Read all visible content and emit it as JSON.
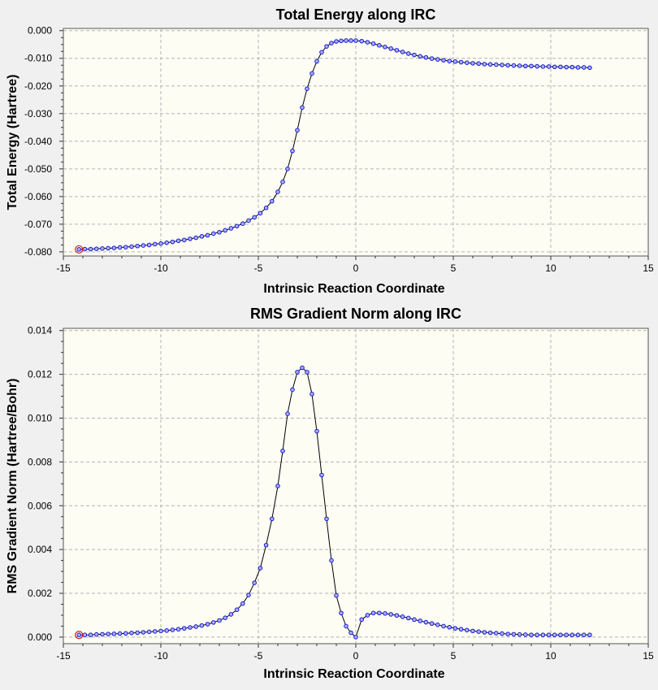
{
  "colors": {
    "window_bg": "#f0f0f0",
    "plot_bg": "#fdfdf4",
    "grid": "#b4b4b4",
    "curve": "#000000",
    "point_stroke": "#1a1acc",
    "point_fill": "#aab0ff",
    "highlight_marker": "#cc2020"
  },
  "chart_data": [
    {
      "type": "line",
      "title": "Total Energy along IRC",
      "xlabel": "Intrinsic Reaction Coordinate",
      "ylabel": "Total Energy (Hartree)",
      "xlim": [
        -15,
        15
      ],
      "ylim": [
        -0.0815,
        0.0008
      ],
      "xticks": [
        -15,
        -10,
        -5,
        0,
        5,
        10,
        15
      ],
      "xtick_labels": [
        "-15",
        "-10",
        "-5",
        "0",
        "5",
        "10",
        "15"
      ],
      "yticks": [
        0,
        -0.01,
        -0.02,
        -0.03,
        -0.04,
        -0.05,
        -0.06,
        -0.07,
        -0.08
      ],
      "ytick_labels": [
        "0.000",
        "-0.010",
        "-0.020",
        "-0.030",
        "-0.040",
        "-0.050",
        "-0.060",
        "-0.070",
        "-0.080"
      ],
      "grid": true,
      "highlighted_point": {
        "x": -14.2,
        "y": -0.0791
      },
      "series": [
        {
          "x": [
            -14.2,
            -13.9,
            -13.6,
            -13.3,
            -13.0,
            -12.7,
            -12.4,
            -12.1,
            -11.8,
            -11.5,
            -11.2,
            -10.9,
            -10.6,
            -10.3,
            -10.0,
            -9.7,
            -9.4,
            -9.1,
            -8.8,
            -8.5,
            -8.2,
            -7.9,
            -7.6,
            -7.3,
            -7.0,
            -6.7,
            -6.4,
            -6.1,
            -5.8,
            -5.5,
            -5.2,
            -4.9,
            -4.6,
            -4.3,
            -4.0,
            -3.75,
            -3.5,
            -3.25,
            -3.0,
            -2.75,
            -2.5,
            -2.25,
            -2.0,
            -1.75,
            -1.5,
            -1.25,
            -1.0,
            -0.75,
            -0.5,
            -0.25,
            0.0,
            0.3,
            0.6,
            0.9,
            1.2,
            1.5,
            1.8,
            2.1,
            2.4,
            2.7,
            3.0,
            3.3,
            3.6,
            3.9,
            4.2,
            4.5,
            4.8,
            5.1,
            5.4,
            5.7,
            6.0,
            6.3,
            6.6,
            6.9,
            7.2,
            7.5,
            7.8,
            8.1,
            8.4,
            8.7,
            9.0,
            9.3,
            9.6,
            9.9,
            10.2,
            10.5,
            10.8,
            11.1,
            11.4,
            11.7,
            12.0
          ],
          "y": [
            -0.0791,
            -0.079,
            -0.079,
            -0.0789,
            -0.0788,
            -0.0787,
            -0.0786,
            -0.0784,
            -0.0783,
            -0.0781,
            -0.0779,
            -0.0777,
            -0.0775,
            -0.0772,
            -0.077,
            -0.0767,
            -0.0764,
            -0.076,
            -0.0757,
            -0.0753,
            -0.0749,
            -0.0744,
            -0.074,
            -0.0734,
            -0.0729,
            -0.0722,
            -0.0715,
            -0.0707,
            -0.0698,
            -0.0687,
            -0.0675,
            -0.066,
            -0.0641,
            -0.0617,
            -0.0583,
            -0.0547,
            -0.05,
            -0.0435,
            -0.036,
            -0.0278,
            -0.021,
            -0.0155,
            -0.0111,
            -0.0078,
            -0.0057,
            -0.0045,
            -0.0039,
            -0.0037,
            -0.0036,
            -0.0036,
            -0.0036,
            -0.0038,
            -0.0042,
            -0.0047,
            -0.0053,
            -0.0059,
            -0.0065,
            -0.0071,
            -0.0077,
            -0.0083,
            -0.0088,
            -0.0093,
            -0.0097,
            -0.0101,
            -0.0104,
            -0.0107,
            -0.011,
            -0.0112,
            -0.0114,
            -0.0116,
            -0.0118,
            -0.0119,
            -0.0121,
            -0.0122,
            -0.0123,
            -0.0124,
            -0.0125,
            -0.0126,
            -0.0127,
            -0.0128,
            -0.0128,
            -0.0129,
            -0.013,
            -0.013,
            -0.0131,
            -0.0131,
            -0.0132,
            -0.0132,
            -0.0133,
            -0.0133,
            -0.0134
          ]
        }
      ]
    },
    {
      "type": "line",
      "title": "RMS Gradient Norm along IRC",
      "xlabel": "Intrinsic Reaction Coordinate",
      "ylabel": "RMS Gradient Norm (Hartree/Bohr)",
      "xlim": [
        -15,
        15
      ],
      "ylim": [
        -0.0003,
        0.0141
      ],
      "xticks": [
        -15,
        -10,
        -5,
        0,
        5,
        10,
        15
      ],
      "xtick_labels": [
        "-15",
        "-10",
        "-5",
        "0",
        "5",
        "10",
        "15"
      ],
      "yticks": [
        0,
        0.002,
        0.004,
        0.006,
        0.008,
        0.01,
        0.012,
        0.014
      ],
      "ytick_labels": [
        "0.000",
        "0.002",
        "0.004",
        "0.006",
        "0.008",
        "0.010",
        "0.012",
        "0.014"
      ],
      "grid": true,
      "highlighted_point": {
        "x": -14.2,
        "y": 0.0001
      },
      "series": [
        {
          "x": [
            -14.2,
            -13.9,
            -13.6,
            -13.3,
            -13.0,
            -12.7,
            -12.4,
            -12.1,
            -11.8,
            -11.5,
            -11.2,
            -10.9,
            -10.6,
            -10.3,
            -10.0,
            -9.7,
            -9.4,
            -9.1,
            -8.8,
            -8.5,
            -8.2,
            -7.9,
            -7.6,
            -7.3,
            -7.0,
            -6.7,
            -6.4,
            -6.1,
            -5.8,
            -5.5,
            -5.2,
            -4.9,
            -4.6,
            -4.3,
            -4.0,
            -3.75,
            -3.5,
            -3.25,
            -3.0,
            -2.75,
            -2.5,
            -2.25,
            -2.0,
            -1.75,
            -1.5,
            -1.25,
            -1.0,
            -0.75,
            -0.5,
            -0.25,
            0.0,
            0.3,
            0.6,
            0.9,
            1.2,
            1.5,
            1.8,
            2.1,
            2.4,
            2.7,
            3.0,
            3.3,
            3.6,
            3.9,
            4.2,
            4.5,
            4.8,
            5.1,
            5.4,
            5.7,
            6.0,
            6.3,
            6.6,
            6.9,
            7.2,
            7.5,
            7.8,
            8.1,
            8.4,
            8.7,
            9.0,
            9.3,
            9.6,
            9.9,
            10.2,
            10.5,
            10.8,
            11.1,
            11.4,
            11.7,
            12.0
          ],
          "y": [
            0.0001,
            0.0001,
            0.0001,
            0.00012,
            0.00013,
            0.00014,
            0.00015,
            0.00016,
            0.00017,
            0.00019,
            0.0002,
            0.00022,
            0.00024,
            0.00026,
            0.00028,
            0.0003,
            0.00033,
            0.00036,
            0.0004,
            0.00044,
            0.00048,
            0.00053,
            0.00059,
            0.00067,
            0.00076,
            0.00088,
            0.00104,
            0.00125,
            0.00153,
            0.00192,
            0.00248,
            0.00315,
            0.0042,
            0.0054,
            0.0069,
            0.0085,
            0.0102,
            0.0113,
            0.0121,
            0.0123,
            0.0121,
            0.0111,
            0.0094,
            0.0074,
            0.0054,
            0.0035,
            0.0019,
            0.0011,
            0.0005,
            0.0002,
            0.0,
            0.0008,
            0.001,
            0.0011,
            0.0011,
            0.00108,
            0.00104,
            0.00099,
            0.00093,
            0.00087,
            0.0008,
            0.00074,
            0.00068,
            0.00062,
            0.00056,
            0.0005,
            0.00045,
            0.0004,
            0.00036,
            0.00032,
            0.00028,
            0.00025,
            0.00022,
            0.0002,
            0.00018,
            0.00016,
            0.00014,
            0.00013,
            0.00012,
            0.00011,
            0.0001,
            0.0001,
            0.0001,
            0.0001,
            0.0001,
            0.0001,
            0.0001,
            0.0001,
            0.0001,
            0.0001,
            0.0001
          ]
        }
      ]
    }
  ]
}
